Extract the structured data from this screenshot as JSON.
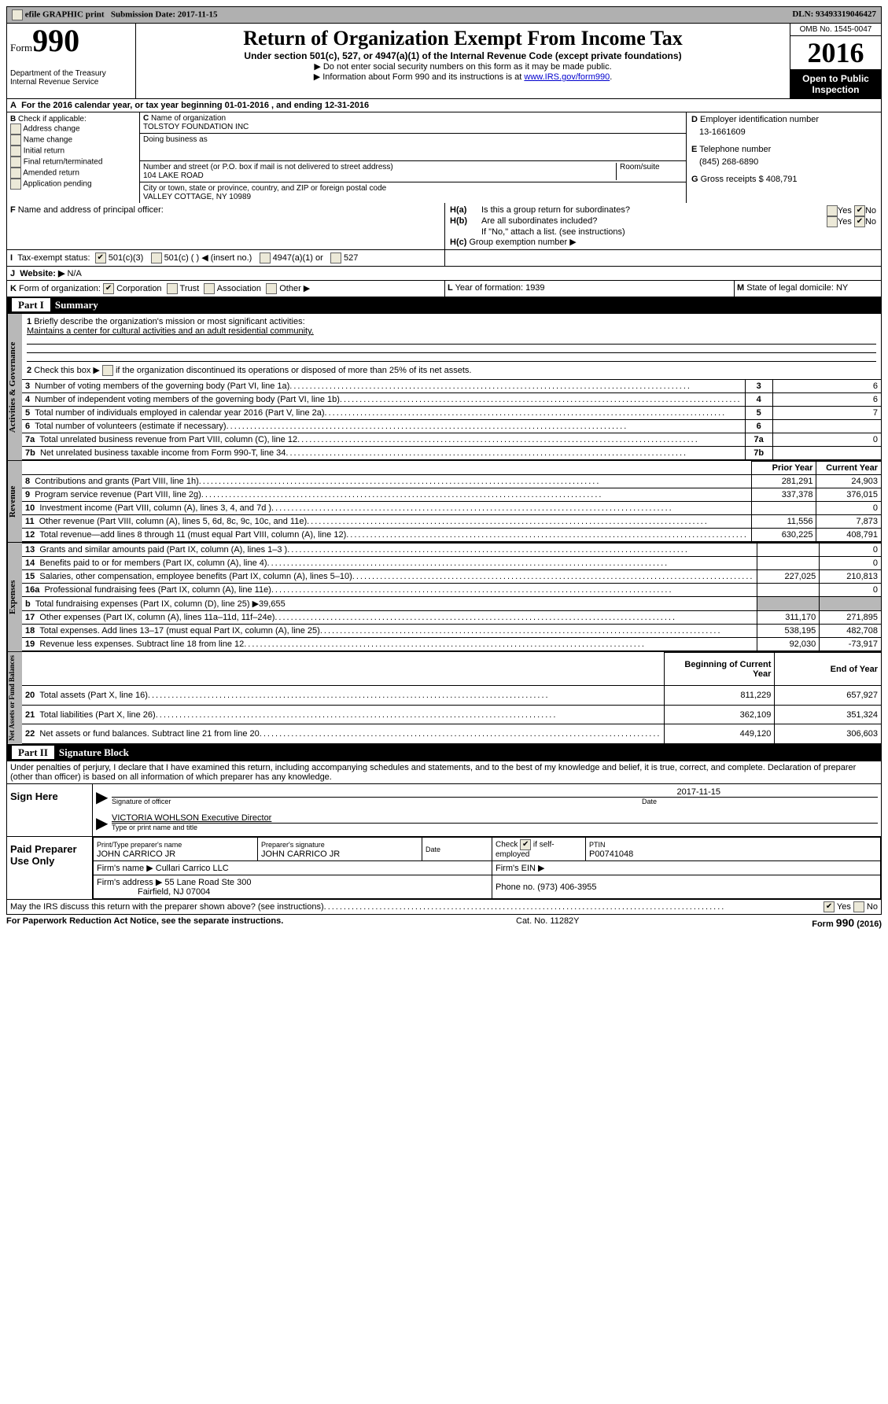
{
  "top": {
    "efile": "efile GRAPHIC print",
    "submission_date_label": "Submission Date: 2017-11-15",
    "dln": "DLN: 93493319046427"
  },
  "hdr": {
    "form": "Form",
    "num": "990",
    "dept": "Department of the Treasury",
    "irs": "Internal Revenue Service",
    "title": "Return of Organization Exempt From Income Tax",
    "sub": "Under section 501(c), 527, or 4947(a)(1) of the Internal Revenue Code (except private foundations)",
    "ssn": "▶ Do not enter social security numbers on this form as it may be made public.",
    "info": "▶ Information about Form 990 and its instructions is at ",
    "info_link": "www.IRS.gov/form990",
    "omb": "OMB No. 1545-0047",
    "year": "2016",
    "open": "Open to Public",
    "insp": "Inspection"
  },
  "A": {
    "text": "For the 2016 calendar year, or tax year beginning 01-01-2016   , and ending 12-31-2016"
  },
  "B": {
    "label": "Check if applicable:",
    "opts": [
      "Address change",
      "Name change",
      "Initial return",
      "Final return/terminated",
      "Amended return",
      "Application pending"
    ]
  },
  "C": {
    "name_lbl": "Name of organization",
    "name": "TOLSTOY FOUNDATION INC",
    "dba_lbl": "Doing business as",
    "dba": "",
    "street_lbl": "Number and street (or P.O. box if mail is not delivered to street address)",
    "room_lbl": "Room/suite",
    "street": "104 LAKE ROAD",
    "city_lbl": "City or town, state or province, country, and ZIP or foreign postal code",
    "city": "VALLEY COTTAGE, NY  10989"
  },
  "D": {
    "lbl": "Employer identification number",
    "val": "13-1661609"
  },
  "E": {
    "lbl": "Telephone number",
    "val": "(845) 268-6890"
  },
  "G": {
    "lbl": "Gross receipts $",
    "val": "408,791"
  },
  "F": {
    "lbl": "Name and address of principal officer:",
    "val": ""
  },
  "H": {
    "a": "Is this a group return for subordinates?",
    "yes": "Yes",
    "no": "No",
    "b": "Are all subordinates included?",
    "note": "If \"No,\" attach a list. (see instructions)",
    "c": "Group exemption number ▶"
  },
  "I": {
    "lbl": "Tax-exempt status:",
    "o1": "501(c)(3)",
    "o2": "501(c) (  ) ◀ (insert no.)",
    "o3": "4947(a)(1) or",
    "o4": "527"
  },
  "J": {
    "lbl": "Website: ▶",
    "val": "N/A"
  },
  "K": {
    "lbl": "Form of organization:",
    "o1": "Corporation",
    "o2": "Trust",
    "o3": "Association",
    "o4": "Other ▶"
  },
  "L": {
    "lbl": "Year of formation: 1939"
  },
  "M": {
    "lbl": "State of legal domicile: NY"
  },
  "partI": {
    "title": "Summary",
    "label": "Part I"
  },
  "gov": {
    "side": "Activities & Governance",
    "l1": "Briefly describe the organization's mission or most significant activities:",
    "l1v": "Maintains a center for cultural activities and an adult residential community.",
    "l2": "Check this box ▶",
    "l2b": "if the organization discontinued its operations or disposed of more than 25% of its net assets.",
    "rows": [
      {
        "n": "3",
        "t": "Number of voting members of the governing body (Part VI, line 1a)",
        "v": "6"
      },
      {
        "n": "4",
        "t": "Number of independent voting members of the governing body (Part VI, line 1b)",
        "v": "6"
      },
      {
        "n": "5",
        "t": "Total number of individuals employed in calendar year 2016 (Part V, line 2a)",
        "v": "7"
      },
      {
        "n": "6",
        "t": "Total number of volunteers (estimate if necessary)",
        "v": ""
      },
      {
        "n": "7a",
        "t": "Total unrelated business revenue from Part VIII, column (C), line 12",
        "v": "0"
      },
      {
        "n": "7b",
        "t": "Net unrelated business taxable income from Form 990-T, line 34",
        "v": "",
        "pre": "b"
      }
    ]
  },
  "rev": {
    "side": "Revenue",
    "h1": "Prior Year",
    "h2": "Current Year",
    "rows": [
      {
        "n": "8",
        "t": "Contributions and grants (Part VIII, line 1h)",
        "p": "281,291",
        "c": "24,903"
      },
      {
        "n": "9",
        "t": "Program service revenue (Part VIII, line 2g)",
        "p": "337,378",
        "c": "376,015"
      },
      {
        "n": "10",
        "t": "Investment income (Part VIII, column (A), lines 3, 4, and 7d )",
        "p": "",
        "c": "0"
      },
      {
        "n": "11",
        "t": "Other revenue (Part VIII, column (A), lines 5, 6d, 8c, 9c, 10c, and 11e)",
        "p": "11,556",
        "c": "7,873"
      },
      {
        "n": "12",
        "t": "Total revenue—add lines 8 through 11 (must equal Part VIII, column (A), line 12)",
        "p": "630,225",
        "c": "408,791"
      }
    ]
  },
  "exp": {
    "side": "Expenses",
    "rows": [
      {
        "n": "13",
        "t": "Grants and similar amounts paid (Part IX, column (A), lines 1–3 )",
        "p": "",
        "c": "0"
      },
      {
        "n": "14",
        "t": "Benefits paid to or for members (Part IX, column (A), line 4)",
        "p": "",
        "c": "0"
      },
      {
        "n": "15",
        "t": "Salaries, other compensation, employee benefits (Part IX, column (A), lines 5–10)",
        "p": "227,025",
        "c": "210,813"
      },
      {
        "n": "16a",
        "t": "Professional fundraising fees (Part IX, column (A), line 11e)",
        "p": "",
        "c": "0"
      },
      {
        "n": "b",
        "t": "Total fundraising expenses (Part IX, column (D), line 25) ▶39,655",
        "shade": true
      },
      {
        "n": "17",
        "t": "Other expenses (Part IX, column (A), lines 11a–11d, 11f–24e)",
        "p": "311,170",
        "c": "271,895"
      },
      {
        "n": "18",
        "t": "Total expenses. Add lines 13–17 (must equal Part IX, column (A), line 25)",
        "p": "538,195",
        "c": "482,708"
      },
      {
        "n": "19",
        "t": "Revenue less expenses. Subtract line 18 from line 12",
        "p": "92,030",
        "c": "-73,917"
      }
    ]
  },
  "net": {
    "side": "Net Assets or Fund Balances",
    "h1": "Beginning of Current Year",
    "h2": "End of Year",
    "rows": [
      {
        "n": "20",
        "t": "Total assets (Part X, line 16)",
        "p": "811,229",
        "c": "657,927"
      },
      {
        "n": "21",
        "t": "Total liabilities (Part X, line 26)",
        "p": "362,109",
        "c": "351,324"
      },
      {
        "n": "22",
        "t": "Net assets or fund balances. Subtract line 21 from line 20",
        "p": "449,120",
        "c": "306,603"
      }
    ]
  },
  "partII": {
    "label": "Part II",
    "title": "Signature Block"
  },
  "perjury": "Under penalties of perjury, I declare that I have examined this return, including accompanying schedules and statements, and to the best of my knowledge and belief, it is true, correct, and complete. Declaration of preparer (other than officer) is based on all information of which preparer has any knowledge.",
  "sign": {
    "here": "Sign Here",
    "sig_date": "2017-11-15",
    "sig_lbl": "Signature of officer",
    "date_lbl": "Date",
    "name": "VICTORIA WOHLSON Executive Director",
    "name_lbl": "Type or print name and title"
  },
  "paid": {
    "here": "Paid Preparer Use Only",
    "c1": "Print/Type preparer's name",
    "c1v": "JOHN CARRICO JR",
    "c2": "Preparer's signature",
    "c2v": "JOHN CARRICO JR",
    "c3": "Date",
    "c4": "Check",
    "c4b": "if self-employed",
    "c5": "PTIN",
    "c5v": "P00741048",
    "firm": "Firm's name  ▶",
    "firmv": "Cullari Carrico LLC",
    "ein": "Firm's EIN ▶",
    "addr": "Firm's address ▶",
    "addrv": "55 Lane Road Ste 300",
    "addr2": "Fairfield, NJ  07004",
    "phone": "Phone no. (973) 406-3955"
  },
  "discuss": "May the IRS discuss this return with the preparer shown above? (see instructions)",
  "footer": {
    "l": "For Paperwork Reduction Act Notice, see the separate instructions.",
    "c": "Cat. No. 11282Y",
    "r": "Form 990 (2016)"
  }
}
